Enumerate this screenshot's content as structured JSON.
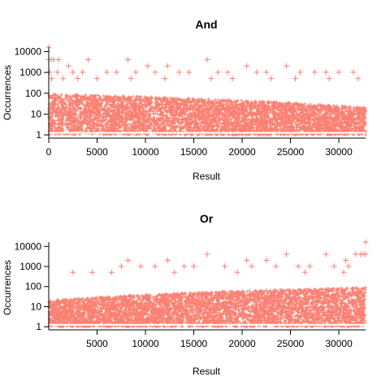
{
  "chart_data": [
    {
      "type": "scatter",
      "title": "And",
      "xlabel": "Result",
      "ylabel": "Occurrences",
      "y_scale": "log",
      "xlim": [
        0,
        32767
      ],
      "ylim": [
        0.7,
        16384
      ],
      "x_ticks": [
        0,
        5000,
        10000,
        15000,
        20000,
        25000,
        30000
      ],
      "y_ticks": [
        1,
        10,
        100,
        1000,
        10000
      ],
      "marker": "+",
      "color": "#fa8072",
      "grid": false,
      "series": [
        {
          "points": [
            [
              0,
              16384
            ],
            [
              16,
              4096
            ],
            [
              256,
              4096
            ],
            [
              512,
              4096
            ],
            [
              1024,
              4096
            ],
            [
              4096,
              4096
            ],
            [
              8192,
              4096
            ],
            [
              16384,
              4096
            ],
            [
              2048,
              2048
            ],
            [
              10240,
              2048
            ],
            [
              12288,
              2048
            ],
            [
              20480,
              2048
            ],
            [
              24576,
              2048
            ],
            [
              100,
              1024
            ],
            [
              900,
              1024
            ],
            [
              2500,
              1024
            ],
            [
              3500,
              1024
            ],
            [
              6000,
              1024
            ],
            [
              7000,
              1024
            ],
            [
              9000,
              1024
            ],
            [
              11000,
              1024
            ],
            [
              13500,
              1024
            ],
            [
              14500,
              1024
            ],
            [
              17500,
              1024
            ],
            [
              18500,
              1024
            ],
            [
              21500,
              1024
            ],
            [
              22500,
              1024
            ],
            [
              26000,
              1024
            ],
            [
              27500,
              1024
            ],
            [
              28672,
              1024
            ],
            [
              30000,
              1024
            ],
            [
              31500,
              1024
            ],
            [
              300,
              512
            ],
            [
              1500,
              512
            ],
            [
              3000,
              512
            ],
            [
              5000,
              512
            ],
            [
              8500,
              512
            ],
            [
              12000,
              512
            ],
            [
              16800,
              512
            ],
            [
              19000,
              512
            ],
            [
              23000,
              512
            ],
            [
              25500,
              512
            ],
            [
              29000,
              512
            ],
            [
              32000,
              512
            ]
          ]
        }
      ]
    },
    {
      "type": "scatter",
      "title": "Or",
      "xlabel": "Result",
      "ylabel": "Occurrences",
      "y_scale": "log",
      "xlim": [
        0,
        32767
      ],
      "ylim": [
        0.7,
        16384
      ],
      "x_ticks": [
        5000,
        10000,
        15000,
        20000,
        25000,
        30000
      ],
      "y_ticks": [
        1,
        10,
        100,
        1000,
        10000
      ],
      "marker": "+",
      "color": "#fa8072",
      "grid": false,
      "series": [
        {
          "points": [
            [
              32767,
              16384
            ],
            [
              32752,
              4096
            ],
            [
              32511,
              4096
            ],
            [
              32255,
              4096
            ],
            [
              31743,
              4096
            ],
            [
              28671,
              4096
            ],
            [
              24575,
              4096
            ],
            [
              16383,
              4096
            ],
            [
              30719,
              2048
            ],
            [
              22527,
              2048
            ],
            [
              20479,
              2048
            ],
            [
              12287,
              2048
            ],
            [
              8191,
              2048
            ],
            [
              31000,
              1024
            ],
            [
              29500,
              1024
            ],
            [
              27000,
              1024
            ],
            [
              25800,
              1024
            ],
            [
              23500,
              1024
            ],
            [
              21000,
              1024
            ],
            [
              18200,
              1024
            ],
            [
              15000,
              1024
            ],
            [
              14000,
              1024
            ],
            [
              11000,
              1024
            ],
            [
              9500,
              1024
            ],
            [
              7500,
              1024
            ],
            [
              30500,
              512
            ],
            [
              26500,
              512
            ],
            [
              19500,
              512
            ],
            [
              13000,
              512
            ],
            [
              6500,
              512
            ],
            [
              4500,
              512
            ],
            [
              2500,
              512
            ]
          ]
        }
      ]
    }
  ]
}
